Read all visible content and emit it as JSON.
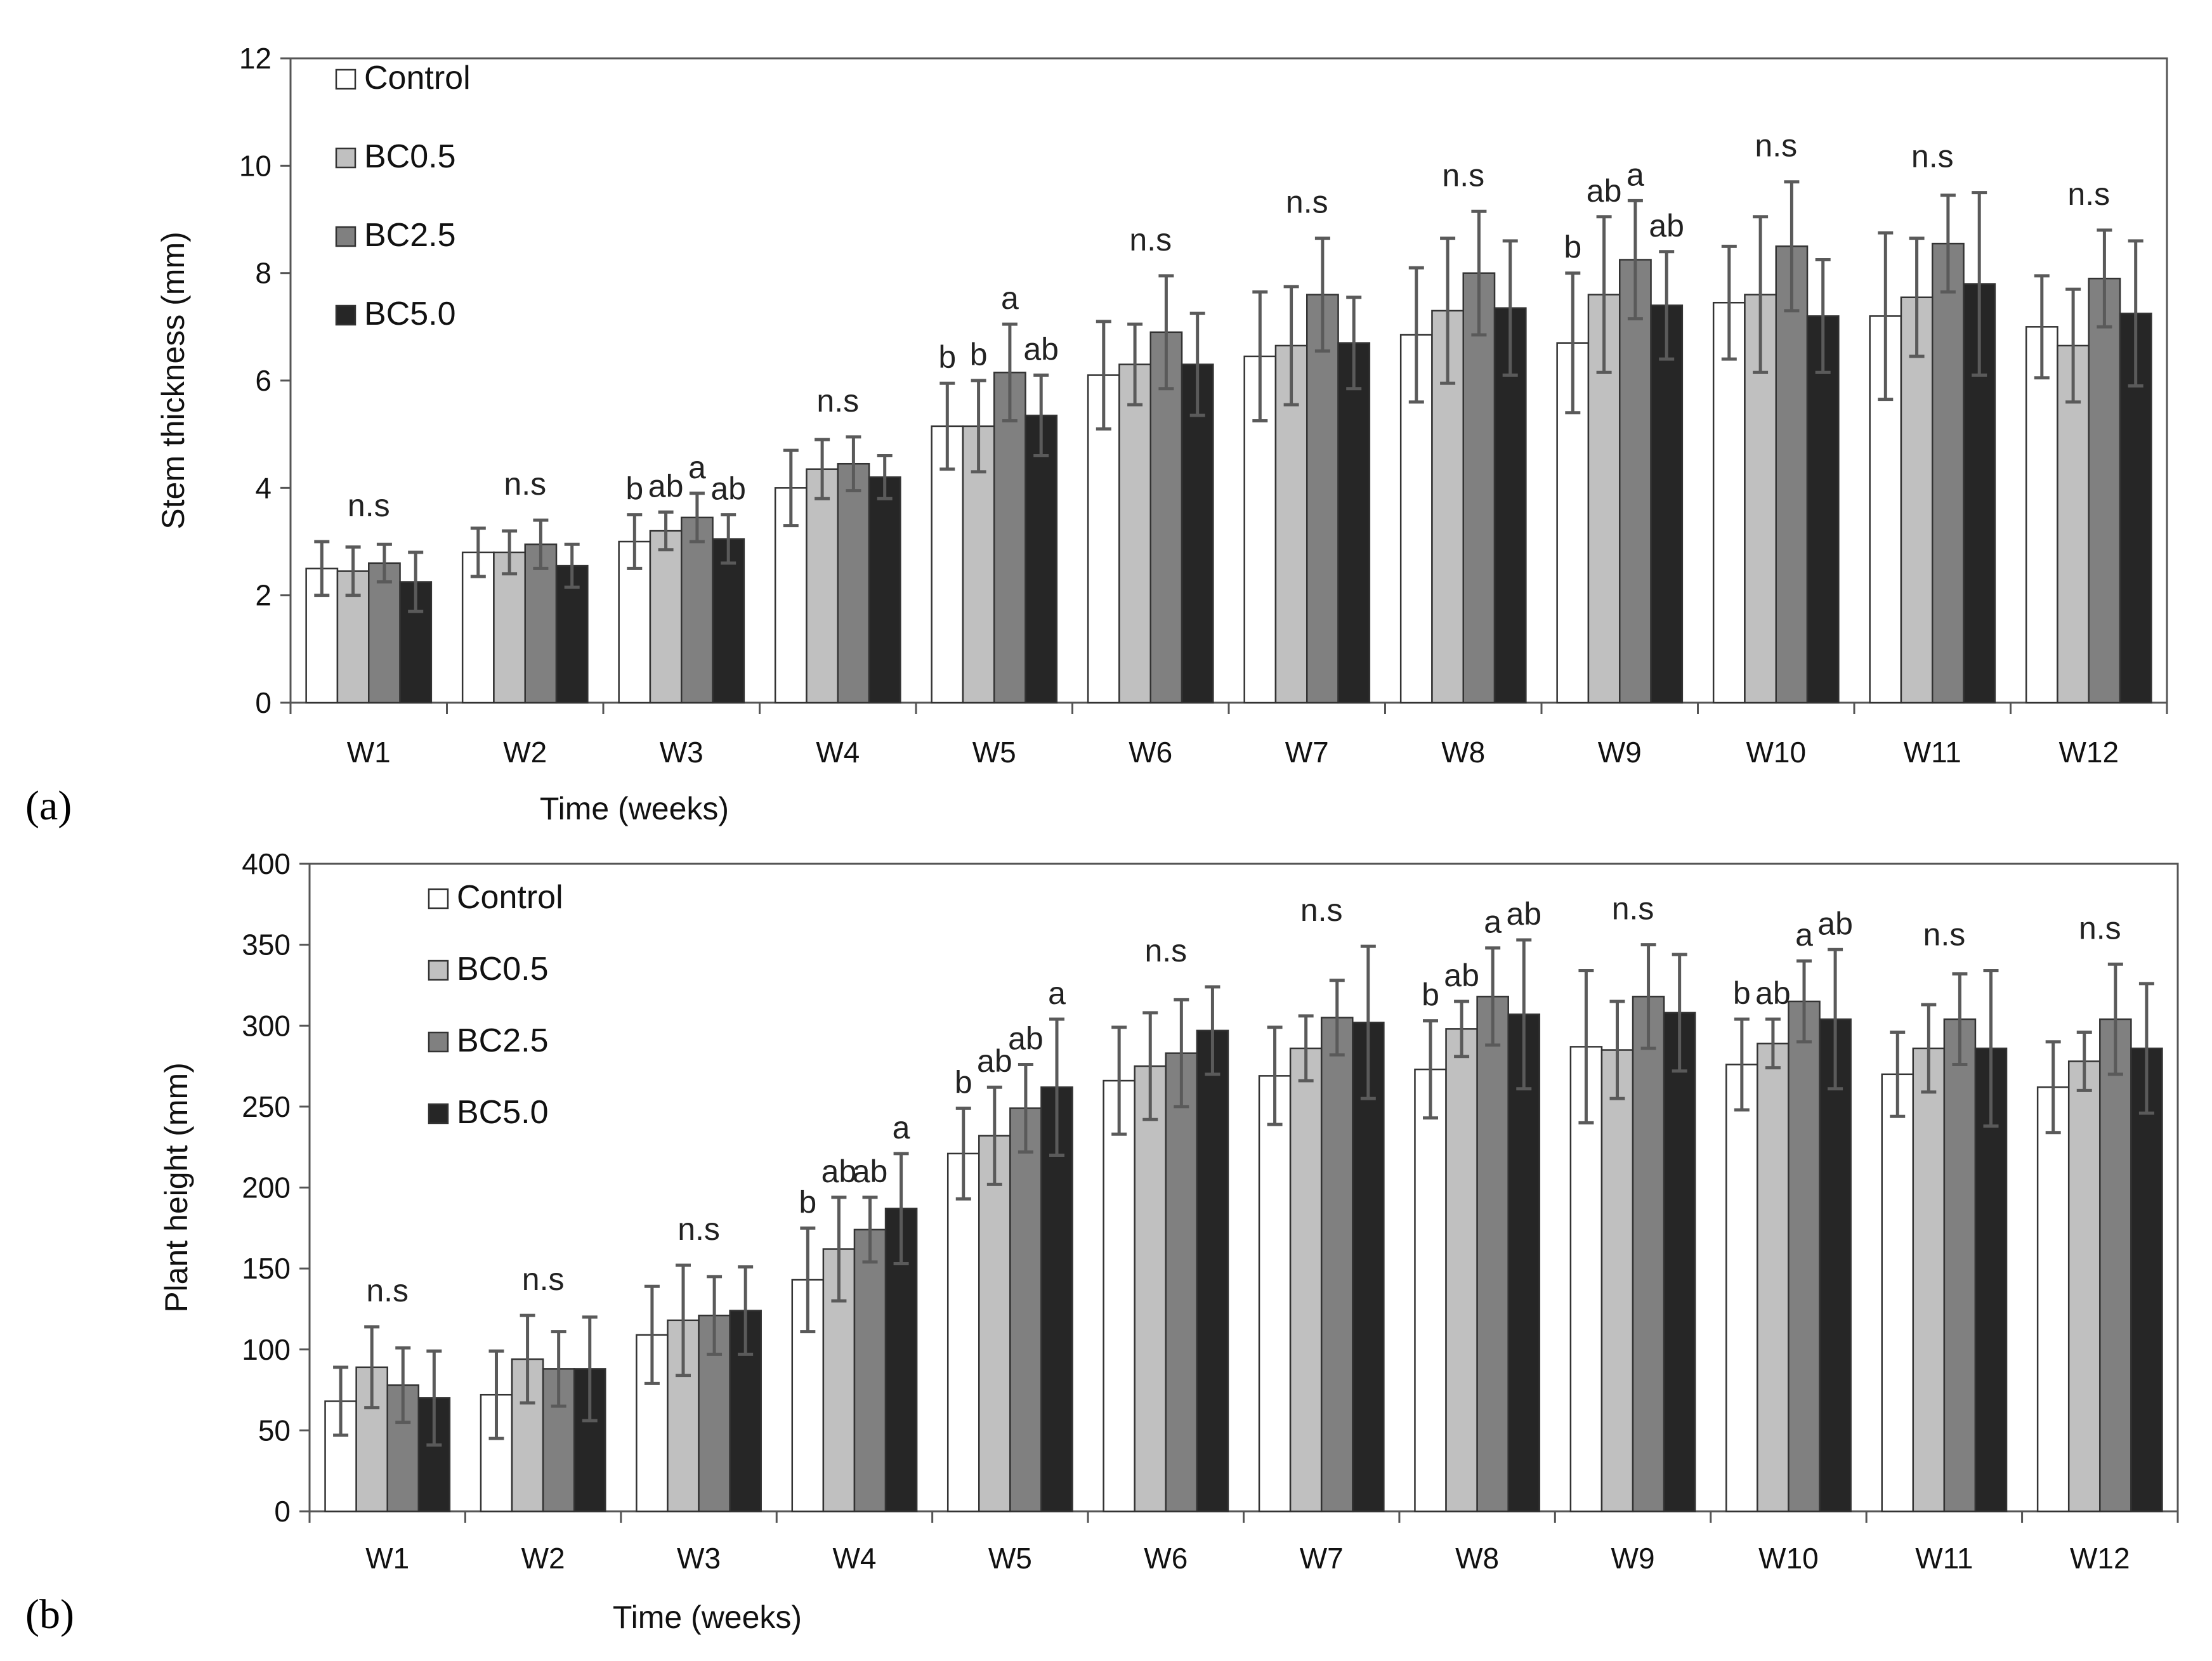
{
  "chart_data": [
    {
      "type": "bar",
      "panel": "(a)",
      "title": "",
      "xlabel": "Time (weeks)",
      "ylabel": "Stem thickness (mm)",
      "ylim": [
        0,
        12
      ],
      "yticks": [
        0,
        2,
        4,
        6,
        8,
        10,
        12
      ],
      "grid": false,
      "legend_position": "top-left",
      "categories": [
        "W1",
        "W2",
        "W3",
        "W4",
        "W5",
        "W6",
        "W7",
        "W8",
        "W9",
        "W10",
        "W11",
        "W12"
      ],
      "series": [
        {
          "name": "Control",
          "color": "#ffffff",
          "values": [
            2.5,
            2.8,
            3.0,
            4.0,
            5.15,
            6.1,
            6.45,
            6.85,
            6.7,
            7.45,
            7.2,
            7.0
          ],
          "errors": [
            0.5,
            0.45,
            0.5,
            0.7,
            0.8,
            1.0,
            1.2,
            1.25,
            1.3,
            1.05,
            1.55,
            0.95
          ]
        },
        {
          "name": "BC0.5",
          "color": "#c0c0c0",
          "values": [
            2.45,
            2.8,
            3.2,
            4.35,
            5.15,
            6.3,
            6.65,
            7.3,
            7.6,
            7.6,
            7.55,
            6.65
          ],
          "errors": [
            0.45,
            0.4,
            0.35,
            0.55,
            0.85,
            0.75,
            1.1,
            1.35,
            1.45,
            1.45,
            1.1,
            1.05
          ]
        },
        {
          "name": "BC2.5",
          "color": "#808080",
          "values": [
            2.6,
            2.95,
            3.45,
            4.45,
            6.15,
            6.9,
            7.6,
            8.0,
            8.25,
            8.5,
            8.55,
            7.9
          ],
          "errors": [
            0.35,
            0.45,
            0.45,
            0.5,
            0.9,
            1.05,
            1.05,
            1.15,
            1.1,
            1.2,
            0.9,
            0.9
          ]
        },
        {
          "name": "BC5.0",
          "color": "#262626",
          "values": [
            2.25,
            2.55,
            3.05,
            4.2,
            5.35,
            6.3,
            6.7,
            7.35,
            7.4,
            7.2,
            7.8,
            7.25
          ],
          "errors": [
            0.55,
            0.4,
            0.45,
            0.4,
            0.75,
            0.95,
            0.85,
            1.25,
            1.0,
            1.05,
            1.7,
            1.35
          ]
        }
      ],
      "annotations": [
        {
          "category": "W1",
          "labels": [
            "n.s"
          ]
        },
        {
          "category": "W2",
          "labels": [
            "n.s"
          ]
        },
        {
          "category": "W3",
          "labels": [
            "b",
            "ab",
            "a",
            "ab"
          ]
        },
        {
          "category": "W4",
          "labels": [
            "n.s"
          ]
        },
        {
          "category": "W5",
          "labels": [
            "b",
            "b",
            "a",
            "ab"
          ]
        },
        {
          "category": "W6",
          "labels": [
            "n.s"
          ]
        },
        {
          "category": "W7",
          "labels": [
            "n.s"
          ]
        },
        {
          "category": "W8",
          "labels": [
            "n.s"
          ]
        },
        {
          "category": "W9",
          "labels": [
            "b",
            "ab",
            "a",
            "ab"
          ]
        },
        {
          "category": "W10",
          "labels": [
            "n.s"
          ]
        },
        {
          "category": "W11",
          "labels": [
            "n.s"
          ]
        },
        {
          "category": "W12",
          "labels": [
            "n.s"
          ]
        }
      ]
    },
    {
      "type": "bar",
      "panel": "(b)",
      "title": "",
      "xlabel": "Time (weeks)",
      "ylabel": "Plant height (mm)",
      "ylim": [
        0,
        400
      ],
      "yticks": [
        0,
        50,
        100,
        150,
        200,
        250,
        300,
        350,
        400
      ],
      "grid": false,
      "legend_position": "top-left",
      "categories": [
        "W1",
        "W2",
        "W3",
        "W4",
        "W5",
        "W6",
        "W7",
        "W8",
        "W9",
        "W10",
        "W11",
        "W12"
      ],
      "series": [
        {
          "name": "Control",
          "color": "#ffffff",
          "values": [
            68,
            72,
            109,
            143,
            221,
            266,
            269,
            273,
            287,
            276,
            270,
            262
          ],
          "errors": [
            21,
            27,
            30,
            32,
            28,
            33,
            30,
            30,
            47,
            28,
            26,
            28
          ]
        },
        {
          "name": "BC0.5",
          "color": "#c0c0c0",
          "values": [
            89,
            94,
            118,
            162,
            232,
            275,
            286,
            298,
            285,
            289,
            286,
            278
          ],
          "errors": [
            25,
            27,
            34,
            32,
            30,
            33,
            20,
            17,
            30,
            15,
            27,
            18
          ]
        },
        {
          "name": "BC2.5",
          "color": "#808080",
          "values": [
            78,
            88,
            121,
            174,
            249,
            283,
            305,
            318,
            318,
            315,
            304,
            304
          ],
          "errors": [
            23,
            23,
            24,
            20,
            27,
            33,
            23,
            30,
            32,
            25,
            28,
            34
          ]
        },
        {
          "name": "BC5.0",
          "color": "#262626",
          "values": [
            70,
            88,
            124,
            187,
            262,
            297,
            302,
            307,
            308,
            304,
            286,
            286
          ],
          "errors": [
            29,
            32,
            27,
            34,
            42,
            27,
            47,
            46,
            36,
            43,
            48,
            40
          ]
        }
      ],
      "annotations": [
        {
          "category": "W1",
          "labels": [
            "n.s"
          ]
        },
        {
          "category": "W2",
          "labels": [
            "n.s"
          ]
        },
        {
          "category": "W3",
          "labels": [
            "n.s"
          ]
        },
        {
          "category": "W4",
          "labels": [
            "b",
            "ab",
            "ab",
            "a"
          ]
        },
        {
          "category": "W5",
          "labels": [
            "b",
            "ab",
            "ab",
            "a"
          ]
        },
        {
          "category": "W6",
          "labels": [
            "n.s"
          ]
        },
        {
          "category": "W7",
          "labels": [
            "n.s"
          ]
        },
        {
          "category": "W8",
          "labels": [
            "b",
            "ab",
            "a",
            "ab"
          ]
        },
        {
          "category": "W9",
          "labels": [
            "n.s"
          ]
        },
        {
          "category": "W10",
          "labels": [
            "b",
            "ab",
            "a",
            "ab"
          ]
        },
        {
          "category": "W11",
          "labels": [
            "n.s"
          ]
        },
        {
          "category": "W12",
          "labels": [
            "n.s"
          ]
        }
      ]
    }
  ]
}
